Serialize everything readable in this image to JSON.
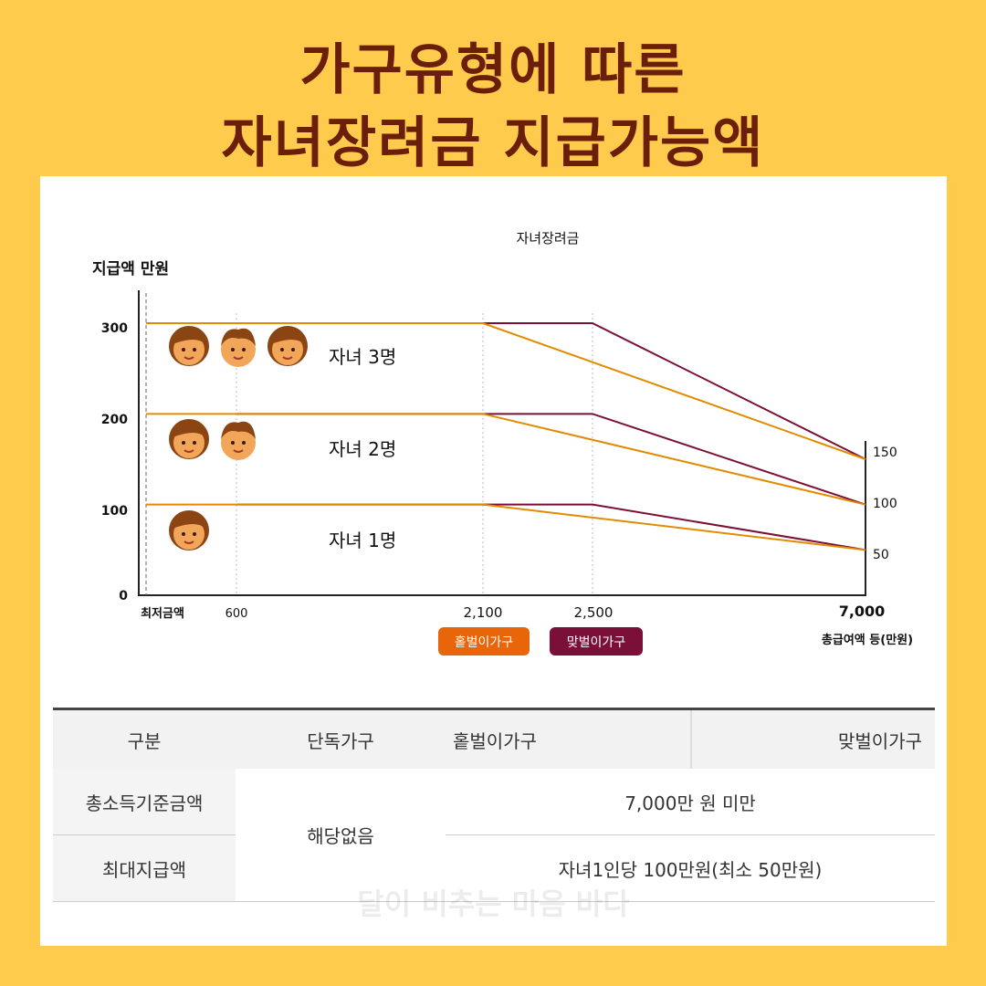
{
  "headline": {
    "line1": "가구유형에 따른",
    "line2": "자녀장려금 지급가능액"
  },
  "chart_data": {
    "type": "line",
    "title": "자녀장려금",
    "ylabel": "지급액 만원",
    "xlabel": "총급여액 등(만원)",
    "ylim": [
      0,
      300
    ],
    "left_ticks": [
      "300",
      "200",
      "100",
      "0"
    ],
    "right_ticks": [
      "150",
      "100",
      "50"
    ],
    "x_tick_labels": [
      "최저금액",
      "600",
      "2,100",
      "2,500",
      "7,000"
    ],
    "legend": [
      {
        "name": "홑벌이가구",
        "color": "#E8650A"
      },
      {
        "name": "맞벌이가구",
        "color": "#7A1038"
      }
    ],
    "annotations": [
      "자녀 3명",
      "자녀 2명",
      "자녀 1명"
    ],
    "series": [
      {
        "household": "홑벌이가구",
        "children": 3,
        "points": [
          [
            600,
            300
          ],
          [
            2100,
            300
          ],
          [
            7000,
            150
          ]
        ]
      },
      {
        "household": "맞벌이가구",
        "children": 3,
        "points": [
          [
            600,
            300
          ],
          [
            2500,
            300
          ],
          [
            7000,
            150
          ]
        ]
      },
      {
        "household": "홑벌이가구",
        "children": 2,
        "points": [
          [
            600,
            200
          ],
          [
            2100,
            200
          ],
          [
            7000,
            100
          ]
        ]
      },
      {
        "household": "맞벌이가구",
        "children": 2,
        "points": [
          [
            600,
            200
          ],
          [
            2500,
            200
          ],
          [
            7000,
            100
          ]
        ]
      },
      {
        "household": "홑벌이가구",
        "children": 1,
        "points": [
          [
            600,
            100
          ],
          [
            2100,
            100
          ],
          [
            7000,
            50
          ]
        ]
      },
      {
        "household": "맞벌이가구",
        "children": 1,
        "points": [
          [
            600,
            100
          ],
          [
            2500,
            100
          ],
          [
            7000,
            50
          ]
        ]
      }
    ],
    "minimum_level_values": [
      300,
      200,
      100
    ],
    "children_per_row": [
      3,
      2,
      1
    ]
  },
  "table": {
    "headers": [
      "구분",
      "단독가구",
      "홑벌이가구",
      "맞벌이가구"
    ],
    "rows": [
      {
        "label": "총소득기준금액",
        "value": "7,000만 원 미만"
      },
      {
        "label": "최대지급액",
        "value": "자녀1인당 100만원(최소 50만원)"
      }
    ],
    "single_value": "해당없음"
  },
  "watermark": "달이 비추는 마음 바다",
  "colors": {
    "background": "#FFCB4C",
    "title": "#6B1F0B",
    "single": "#E8650A",
    "dual": "#7A1038",
    "line": "#E28A00"
  }
}
